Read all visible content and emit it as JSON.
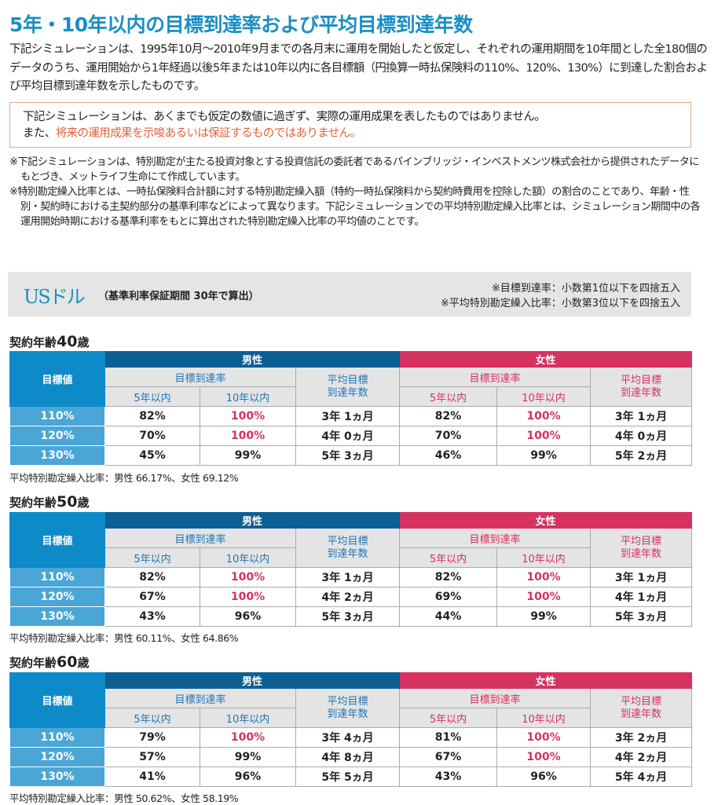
{
  "title": "5年・10年以内の目標到達率および平均目標到達年数",
  "intro": "下記シミュレーションは、1995年10月～2010年9月までの各月末に運用を開始したと仮定し、それぞれの運用期間を10年間とした全180個のデータのうち、運用開始から1年経過以後5年または10年以内に各目標額（円換算一時払保険料の110%、120%、130%）に到達した割合および平均目標到達年数を示したものです。",
  "warning": {
    "line1": "下記シミュレーションは、あくまでも仮定の数値に過ぎず、実際の運用成果を表したものではありません。",
    "line2_prefix": "また、",
    "line2_highlight": "将来の運用成果を示唆あるいは保証するものではありません。"
  },
  "notes": [
    "※下記シミュレーションは、特別勘定が主たる投資対象とする投資信託の委託者であるパインブリッジ・インベストメンツ株式会社から提供されたデータにもとづき、メットライフ生命にて作成しています。",
    "※特別勘定繰入比率とは、一時払保険料合計額に対する特別勘定繰入額（特約一時払保険料から契約時費用を控除した額）の割合のことであり、年齢・性別・契約時における主契約部分の基準利率などによって異なります。下記シミュレーションでの平均特別勘定繰入比率とは、シミュレーション期間中の各運用開始時期における基準利率をもとに算出された特別勘定繰入比率の平均値のことです。"
  ],
  "band": {
    "currency": "USドル",
    "subtitle": "（基準利率保証期間 30年で算出）",
    "note1": "※目標到達率：小数第1位以下を四捨五入",
    "note2": "※平均特別勘定繰入比率：小数第3位以下を四捨五入"
  },
  "headers": {
    "target": "目標値",
    "male": "男性",
    "female": "女性",
    "rate": "目標到達率",
    "avg": "平均目標到達年数",
    "y5": "5年以内",
    "y10": "10年以内"
  },
  "colors": {
    "title": "#1a8fc4",
    "male": "#0d5f93",
    "female": "#d6325f",
    "target": "#0e8ac8"
  },
  "sections": [
    {
      "label_prefix": "契約年齢",
      "age": "40",
      "label_suffix": "歳",
      "rows": [
        [
          "110%",
          "82%",
          "100%",
          "3年 1ヵ月",
          "82%",
          "100%",
          "3年 1ヵ月"
        ],
        [
          "120%",
          "70%",
          "100%",
          "4年 0ヵ月",
          "70%",
          "100%",
          "4年 0ヵ月"
        ],
        [
          "130%",
          "45%",
          "99%",
          "5年 3ヵ月",
          "46%",
          "99%",
          "5年 2ヵ月"
        ]
      ],
      "footnote": "平均特別勘定繰入比率：男性 66.17%、女性 69.12%"
    },
    {
      "label_prefix": "契約年齢",
      "age": "50",
      "label_suffix": "歳",
      "rows": [
        [
          "110%",
          "82%",
          "100%",
          "3年 1ヵ月",
          "82%",
          "100%",
          "3年 1ヵ月"
        ],
        [
          "120%",
          "67%",
          "100%",
          "4年 2ヵ月",
          "69%",
          "100%",
          "4年 1ヵ月"
        ],
        [
          "130%",
          "43%",
          "96%",
          "5年 3ヵ月",
          "44%",
          "99%",
          "5年 3ヵ月"
        ]
      ],
      "footnote": "平均特別勘定繰入比率：男性 60.11%、女性 64.86%"
    },
    {
      "label_prefix": "契約年齢",
      "age": "60",
      "label_suffix": "歳",
      "rows": [
        [
          "110%",
          "79%",
          "100%",
          "3年 4ヵ月",
          "81%",
          "100%",
          "3年 2ヵ月"
        ],
        [
          "120%",
          "57%",
          "99%",
          "4年 8ヵ月",
          "67%",
          "100%",
          "4年 2ヵ月"
        ],
        [
          "130%",
          "41%",
          "96%",
          "5年 5ヵ月",
          "43%",
          "96%",
          "5年 4ヵ月"
        ]
      ],
      "footnote": "平均特別勘定繰入比率：男性 50.62%、女性 58.19%"
    }
  ]
}
